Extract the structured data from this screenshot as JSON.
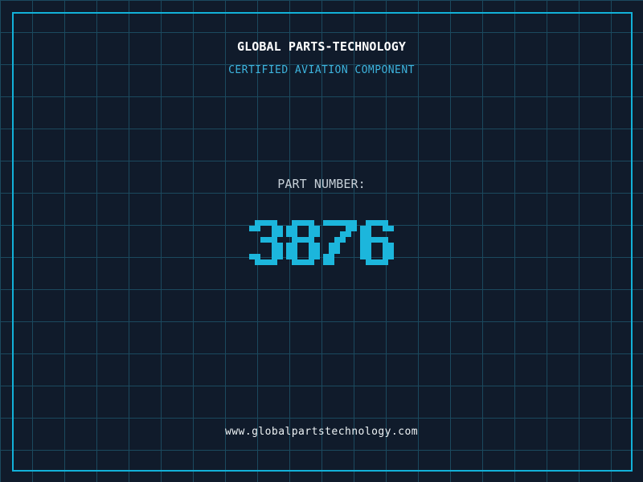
{
  "theme": {
    "background": "#101b2b",
    "grid_line": "#1b495e",
    "frame_cyan": "#12b1d9",
    "digit_cyan": "#1cb6dc",
    "subtitle_cyan": "#3db4de",
    "label_gray": "#c7d0d8",
    "title_white": "#ffffff",
    "url_white": "#edf2f4"
  },
  "header": {
    "title": "GLOBAL PARTS-TECHNOLOGY",
    "subtitle": "CERTIFIED AVIATION COMPONENT"
  },
  "part": {
    "label": "PART NUMBER:",
    "number": "3876"
  },
  "footer": {
    "url": "www.globalpartstechnology.com"
  }
}
